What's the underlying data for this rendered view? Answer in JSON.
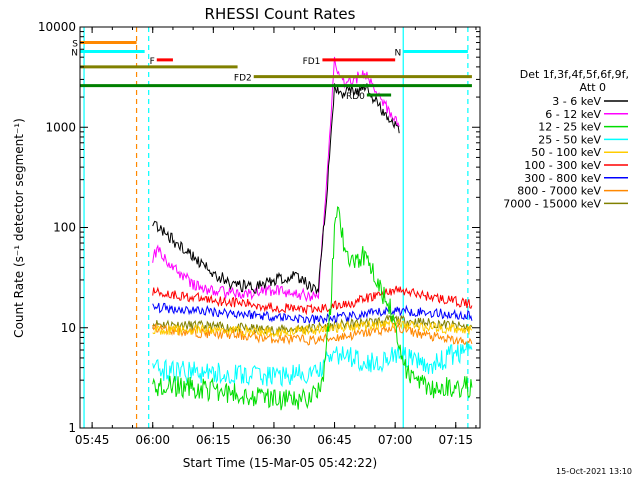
{
  "chart_data": {
    "type": "line",
    "title": "RHESSI Count Rates",
    "xlabel": "Start Time (15-Mar-05 05:42:22)",
    "ylabel": "Count Rate (s⁻¹ detector segment⁻¹)",
    "y_scale": "log",
    "ylim": [
      1,
      10000
    ],
    "xlim": [
      "05:42",
      "07:21"
    ],
    "x_ticks": [
      "05:45",
      "06:00",
      "06:15",
      "06:30",
      "06:45",
      "07:00",
      "07:15"
    ],
    "y_ticks": [
      "1",
      "10",
      "100",
      "1000",
      "10000"
    ],
    "legend_header": [
      "Det 1f,3f,4f,5f,6f,9f,",
      "Att 0"
    ],
    "series": [
      {
        "name": "3 - 6 keV",
        "color": "#000000",
        "x": [
          "06:00",
          "06:01",
          "06:05",
          "06:10",
          "06:15",
          "06:20",
          "06:25",
          "06:30",
          "06:35",
          "06:38",
          "06:41",
          "06:43",
          "06:45",
          "06:47",
          "06:50",
          "06:53",
          "06:56",
          "06:59",
          "07:01"
        ],
        "values": [
          100,
          105,
          75,
          50,
          35,
          27,
          25,
          30,
          32,
          28,
          24,
          200,
          2400,
          2200,
          2300,
          2400,
          1600,
          1200,
          1000
        ]
      },
      {
        "name": "6 - 12 keV",
        "color": "#ff00ff",
        "x": [
          "06:00",
          "06:01",
          "06:05",
          "06:10",
          "06:15",
          "06:20",
          "06:25",
          "06:30",
          "06:35",
          "06:38",
          "06:41",
          "06:43",
          "06:45",
          "06:46",
          "06:47",
          "06:50",
          "06:52",
          "06:54",
          "06:57",
          "07:00",
          "07:01"
        ],
        "values": [
          50,
          60,
          40,
          27,
          23,
          22,
          22,
          24,
          22,
          21,
          20,
          300,
          4500,
          3500,
          2800,
          3000,
          3400,
          3000,
          1800,
          1200,
          900
        ]
      },
      {
        "name": "12 - 25 keV",
        "color": "#00dd00",
        "x": [
          "06:00",
          "06:05",
          "06:10",
          "06:15",
          "06:20",
          "06:25",
          "06:30",
          "06:35",
          "06:40",
          "06:42",
          "06:44",
          "06:45",
          "06:46",
          "06:47",
          "06:49",
          "06:51",
          "06:53",
          "06:55",
          "06:57",
          "07:00",
          "07:02",
          "07:05",
          "07:10",
          "07:15",
          "07:19"
        ],
        "values": [
          2.6,
          2.6,
          2.5,
          2.4,
          2.2,
          2.1,
          2,
          1.8,
          2.2,
          3,
          15,
          100,
          140,
          80,
          40,
          50,
          55,
          35,
          22,
          12,
          4,
          3,
          2.5,
          2.5,
          2.6
        ]
      },
      {
        "name": "25 - 50 keV",
        "color": "#00ffff",
        "x": [
          "06:00",
          "06:10",
          "06:20",
          "06:30",
          "06:40",
          "06:43",
          "06:45",
          "06:50",
          "06:55",
          "07:00",
          "07:05",
          "07:10",
          "07:15",
          "07:19"
        ],
        "values": [
          3.8,
          3.6,
          3.4,
          3.3,
          3.4,
          4.5,
          5.5,
          5,
          4.4,
          5.5,
          4.5,
          4.3,
          5.6,
          5.8
        ]
      },
      {
        "name": "50 - 100 keV",
        "color": "#ffcc00",
        "x": [
          "06:00",
          "06:10",
          "06:20",
          "06:30",
          "06:40",
          "06:50",
          "07:00",
          "07:10",
          "07:19"
        ],
        "values": [
          9.5,
          9.5,
          9.5,
          9,
          9.5,
          10.5,
          11,
          10,
          9.5
        ]
      },
      {
        "name": "100 - 300 keV",
        "color": "#ff0000",
        "x": [
          "06:00",
          "06:10",
          "06:20",
          "06:30",
          "06:40",
          "06:50",
          "07:00",
          "07:10",
          "07:19"
        ],
        "values": [
          23,
          20,
          18,
          16,
          15,
          18,
          24,
          20,
          17
        ]
      },
      {
        "name": "300 - 800 keV",
        "color": "#0000ff",
        "x": [
          "06:00",
          "06:10",
          "06:20",
          "06:30",
          "06:40",
          "06:50",
          "07:00",
          "07:10",
          "07:19"
        ],
        "values": [
          16,
          15,
          14,
          13,
          12,
          13,
          15,
          14,
          13
        ]
      },
      {
        "name": "800 - 7000 keV",
        "color": "#ff8800",
        "x": [
          "06:00",
          "06:10",
          "06:20",
          "06:30",
          "06:40",
          "06:50",
          "07:00",
          "07:10",
          "07:19"
        ],
        "values": [
          10,
          9,
          8.5,
          7.8,
          7.5,
          8.5,
          10,
          8,
          7
        ]
      },
      {
        "name": "7000 - 15000 keV",
        "color": "#808000",
        "x": [
          "06:00",
          "06:10",
          "06:20",
          "06:30",
          "06:40",
          "06:50",
          "07:00",
          "07:10",
          "07:19"
        ],
        "values": [
          11,
          10.5,
          10,
          9.5,
          10,
          11,
          12,
          11,
          10
        ]
      }
    ],
    "flag_bars": [
      {
        "label": "S",
        "color": "#ff8800",
        "x": [
          "05:42",
          "05:56"
        ],
        "y": 7000
      },
      {
        "label": "N",
        "color": "#00ffff",
        "x": [
          "05:42",
          "05:58"
        ],
        "y": 5700
      },
      {
        "label": "N",
        "color": "#00ffff",
        "x": [
          "07:02",
          "07:18"
        ],
        "y": 5700
      },
      {
        "label": "F",
        "color": "#ff0000",
        "x": [
          "06:01",
          "06:05"
        ],
        "y": 4700
      },
      {
        "label": "FD1",
        "color": "#ff0000",
        "x": [
          "06:42",
          "07:00"
        ],
        "y": 4700
      },
      {
        "label": "",
        "color": "#808000",
        "x": [
          "05:42",
          "06:21"
        ],
        "y": 4000
      },
      {
        "label": "FD2",
        "color": "#808000",
        "x": [
          "06:25",
          "07:19"
        ],
        "y": 3200
      },
      {
        "label": "",
        "color": "#008000",
        "x": [
          "05:42",
          "07:19"
        ],
        "y": 2600
      },
      {
        "label": "RD0",
        "color": "#008000",
        "x": [
          "06:53",
          "06:59"
        ],
        "y": 2100
      }
    ],
    "vertical_markers": [
      {
        "color": "#00ffff",
        "style": "solid",
        "x": "05:43"
      },
      {
        "color": "#ff8800",
        "style": "dashed",
        "x": "05:56"
      },
      {
        "color": "#00ffff",
        "style": "dashed",
        "x": "05:59"
      },
      {
        "color": "#00ffff",
        "style": "solid",
        "x": "07:02"
      },
      {
        "color": "#00ffff",
        "style": "dashed",
        "x": "07:18"
      }
    ],
    "grid": false,
    "legend_position": "right"
  },
  "stamp": "15-Oct-2021 13:10"
}
